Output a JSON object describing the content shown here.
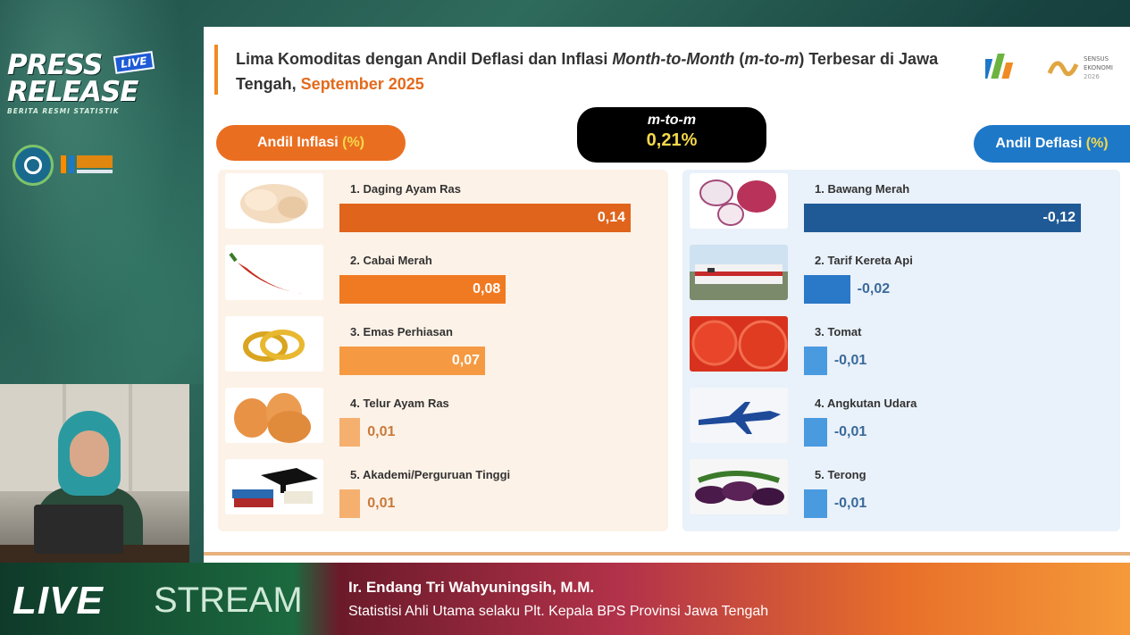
{
  "brand": {
    "press_line1": "PRESS",
    "press_line2": "RELEASE",
    "live_tag": "LIVE",
    "subtitle": "BERITA RESMI STATISTIK"
  },
  "slide": {
    "title_part1": "Lima Komoditas dengan Andil Deflasi dan Inflasi ",
    "title_italic1": "Month-to-Month",
    "title_part2": " (",
    "title_italic2": "m-to-m",
    "title_part3": ") Terbesar di Jawa Tengah, ",
    "period": "September 2025",
    "logo_text": "SENSUS EKONOMI 2026",
    "mtm_label": "m-to-m",
    "mtm_value": "0,21%",
    "inflasi_label": "Andil Inflasi ",
    "deflasi_label": "Andil Deflasi ",
    "pct_label": "(%)"
  },
  "chart_data": {
    "type": "bar",
    "inflasi": {
      "categories": [
        "1. Daging Ayam Ras",
        "2. Cabai Merah",
        "3. Emas Perhiasan",
        "4. Telur Ayam Ras",
        "5. Akademi/Perguruan Tinggi"
      ],
      "values": [
        0.14,
        0.08,
        0.07,
        0.01,
        0.01
      ],
      "labels": [
        "0,14",
        "0,08",
        "0,07",
        "0,01",
        "0,01"
      ],
      "colors": [
        "#e0641c",
        "#f07a22",
        "#f59a42",
        "#f5b070",
        "#f5b070"
      ]
    },
    "deflasi": {
      "categories": [
        "1. Bawang Merah",
        "2. Tarif Kereta Api",
        "3. Tomat",
        "4. Angkutan Udara",
        "5. Terong"
      ],
      "values": [
        -0.12,
        -0.02,
        -0.01,
        -0.01,
        -0.01
      ],
      "labels": [
        "-0,12",
        "-0,02",
        "-0,01",
        "-0,01",
        "-0,01"
      ],
      "colors": [
        "#1f5a96",
        "#2a78c8",
        "#4a9ae0",
        "#4a9ae0",
        "#4a9ae0"
      ]
    }
  },
  "footer": {
    "live": "LIVE",
    "stream": "STREAM",
    "speaker_name": "Ir. Endang Tri Wahyuningsih, M.M.",
    "speaker_role": "Statistisi Ahli Utama selaku Plt. Kepala BPS Provinsi Jawa Tengah"
  }
}
